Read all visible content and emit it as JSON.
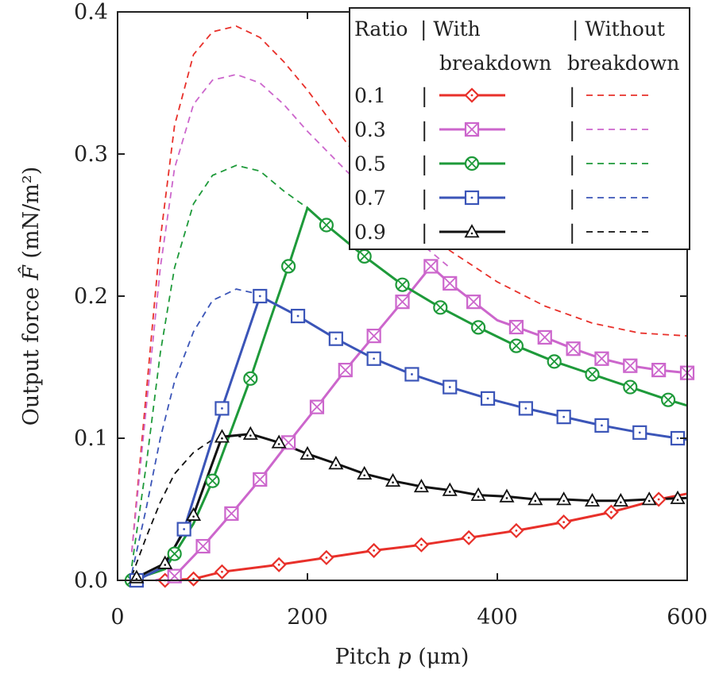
{
  "chart_data": {
    "type": "line",
    "xlabel": {
      "prefix": "Pitch ",
      "symbol": "p",
      "unit": " (μm)"
    },
    "ylabel": {
      "prefix": "Output force ",
      "symbol": "F̂",
      "unit": " (mN/m²)"
    },
    "xlim": [
      0,
      600
    ],
    "ylim": [
      0,
      0.4
    ],
    "xticks": [
      0,
      200,
      400,
      600
    ],
    "xtick_labels": [
      "0",
      "200",
      "400",
      "600"
    ],
    "yticks": [
      0,
      0.1,
      0.2,
      0.3,
      0.4
    ],
    "ytick_labels": [
      "0.0",
      "0.1",
      "0.2",
      "0.3",
      "0.4"
    ],
    "grid": false,
    "legend": {
      "placement": "top-right",
      "header": {
        "ratio": "Ratio",
        "with_line1": "| With",
        "with_line2": "breakdown",
        "without_line1": "| Without",
        "without_line2": "breakdown"
      },
      "separator": "|"
    },
    "series": [
      {
        "ratio": "0.1",
        "color": "#e8302a",
        "marker": "diamond",
        "with_breakdown": [
          [
            50,
            0.0
          ],
          [
            80,
            0.001
          ],
          [
            110,
            0.006
          ],
          [
            170,
            0.011
          ],
          [
            220,
            0.016
          ],
          [
            270,
            0.021
          ],
          [
            320,
            0.025
          ],
          [
            370,
            0.03
          ],
          [
            420,
            0.035
          ],
          [
            470,
            0.041
          ],
          [
            520,
            0.048
          ],
          [
            570,
            0.057
          ],
          [
            600,
            0.061
          ]
        ],
        "marker_x": [
          50,
          80,
          110,
          170,
          220,
          270,
          320,
          370,
          420,
          470,
          520,
          570
        ],
        "without_breakdown": [
          [
            15,
            0.02
          ],
          [
            30,
            0.13
          ],
          [
            45,
            0.24
          ],
          [
            60,
            0.32
          ],
          [
            80,
            0.37
          ],
          [
            100,
            0.386
          ],
          [
            125,
            0.39
          ],
          [
            150,
            0.382
          ],
          [
            175,
            0.365
          ],
          [
            200,
            0.345
          ],
          [
            250,
            0.3
          ],
          [
            300,
            0.262
          ],
          [
            350,
            0.232
          ],
          [
            400,
            0.21
          ],
          [
            450,
            0.193
          ],
          [
            500,
            0.181
          ],
          [
            550,
            0.174
          ],
          [
            600,
            0.172
          ]
        ]
      },
      {
        "ratio": "0.3",
        "color": "#cc66cc",
        "marker": "square-x",
        "with_breakdown": [
          [
            40,
            0.0
          ],
          [
            60,
            0.003
          ],
          [
            90,
            0.024
          ],
          [
            120,
            0.047
          ],
          [
            150,
            0.071
          ],
          [
            180,
            0.097
          ],
          [
            210,
            0.122
          ],
          [
            240,
            0.148
          ],
          [
            270,
            0.172
          ],
          [
            300,
            0.196
          ],
          [
            330,
            0.221
          ],
          [
            350,
            0.209
          ],
          [
            375,
            0.196
          ],
          [
            400,
            0.183
          ],
          [
            450,
            0.171
          ],
          [
            480,
            0.163
          ],
          [
            510,
            0.156
          ],
          [
            540,
            0.151
          ],
          [
            570,
            0.148
          ],
          [
            600,
            0.146
          ]
        ],
        "marker_x": [
          60,
          90,
          120,
          150,
          180,
          210,
          240,
          270,
          300,
          330,
          350,
          375,
          420,
          450,
          480,
          510,
          540,
          570,
          600
        ],
        "without_breakdown": [
          [
            15,
            0.02
          ],
          [
            30,
            0.12
          ],
          [
            45,
            0.22
          ],
          [
            60,
            0.29
          ],
          [
            80,
            0.335
          ],
          [
            100,
            0.352
          ],
          [
            125,
            0.356
          ],
          [
            150,
            0.35
          ],
          [
            175,
            0.335
          ],
          [
            200,
            0.316
          ],
          [
            250,
            0.282
          ],
          [
            300,
            0.248
          ],
          [
            350,
            0.22
          ]
        ]
      },
      {
        "ratio": "0.5",
        "color": "#1e9a3a",
        "marker": "circle-x",
        "with_breakdown": [
          [
            15,
            0.0
          ],
          [
            50,
            0.008
          ],
          [
            80,
            0.04
          ],
          [
            100,
            0.07
          ],
          [
            140,
            0.142
          ],
          [
            160,
            0.182
          ],
          [
            180,
            0.221
          ],
          [
            200,
            0.262
          ],
          [
            220,
            0.25
          ],
          [
            260,
            0.228
          ],
          [
            300,
            0.208
          ],
          [
            340,
            0.192
          ],
          [
            380,
            0.178
          ],
          [
            420,
            0.165
          ],
          [
            460,
            0.154
          ],
          [
            500,
            0.145
          ],
          [
            540,
            0.136
          ],
          [
            580,
            0.127
          ],
          [
            600,
            0.123
          ]
        ],
        "marker_x": [
          15,
          60,
          100,
          140,
          180,
          220,
          260,
          300,
          340,
          380,
          420,
          460,
          500,
          540,
          580
        ],
        "without_breakdown": [
          [
            15,
            0.01
          ],
          [
            30,
            0.08
          ],
          [
            45,
            0.16
          ],
          [
            60,
            0.22
          ],
          [
            80,
            0.265
          ],
          [
            100,
            0.285
          ],
          [
            125,
            0.292
          ],
          [
            150,
            0.288
          ],
          [
            175,
            0.274
          ],
          [
            200,
            0.262
          ]
        ]
      },
      {
        "ratio": "0.7",
        "color": "#3b55b8",
        "marker": "square-dot",
        "with_breakdown": [
          [
            20,
            0.0
          ],
          [
            50,
            0.01
          ],
          [
            70,
            0.036
          ],
          [
            110,
            0.121
          ],
          [
            150,
            0.2
          ],
          [
            190,
            0.186
          ],
          [
            230,
            0.17
          ],
          [
            270,
            0.156
          ],
          [
            310,
            0.145
          ],
          [
            350,
            0.136
          ],
          [
            390,
            0.128
          ],
          [
            430,
            0.121
          ],
          [
            470,
            0.115
          ],
          [
            510,
            0.109
          ],
          [
            550,
            0.104
          ],
          [
            590,
            0.1
          ],
          [
            600,
            0.099
          ]
        ],
        "marker_x": [
          20,
          70,
          110,
          150,
          190,
          230,
          270,
          310,
          350,
          390,
          430,
          470,
          510,
          550,
          590
        ],
        "without_breakdown": [
          [
            15,
            0.005
          ],
          [
            30,
            0.05
          ],
          [
            45,
            0.1
          ],
          [
            60,
            0.14
          ],
          [
            80,
            0.175
          ],
          [
            100,
            0.197
          ],
          [
            125,
            0.205
          ],
          [
            145,
            0.202
          ]
        ]
      },
      {
        "ratio": "0.9",
        "color": "#111111",
        "marker": "triangle",
        "with_breakdown": [
          [
            20,
            0.002
          ],
          [
            50,
            0.012
          ],
          [
            80,
            0.046
          ],
          [
            110,
            0.101
          ],
          [
            140,
            0.103
          ],
          [
            170,
            0.097
          ],
          [
            200,
            0.089
          ],
          [
            235,
            0.081
          ],
          [
            260,
            0.075
          ],
          [
            290,
            0.07
          ],
          [
            320,
            0.066
          ],
          [
            355,
            0.063
          ],
          [
            380,
            0.06
          ],
          [
            410,
            0.059
          ],
          [
            440,
            0.057
          ],
          [
            470,
            0.057
          ],
          [
            500,
            0.056
          ],
          [
            530,
            0.056
          ],
          [
            560,
            0.057
          ],
          [
            600,
            0.058
          ]
        ],
        "marker_x": [
          20,
          50,
          80,
          110,
          140,
          170,
          200,
          230,
          260,
          290,
          320,
          350,
          380,
          410,
          440,
          470,
          500,
          530,
          560,
          590
        ],
        "without_breakdown": [
          [
            15,
            0.003
          ],
          [
            30,
            0.03
          ],
          [
            45,
            0.055
          ],
          [
            60,
            0.075
          ],
          [
            80,
            0.09
          ],
          [
            100,
            0.099
          ],
          [
            120,
            0.102
          ],
          [
            130,
            0.101
          ]
        ]
      }
    ]
  }
}
